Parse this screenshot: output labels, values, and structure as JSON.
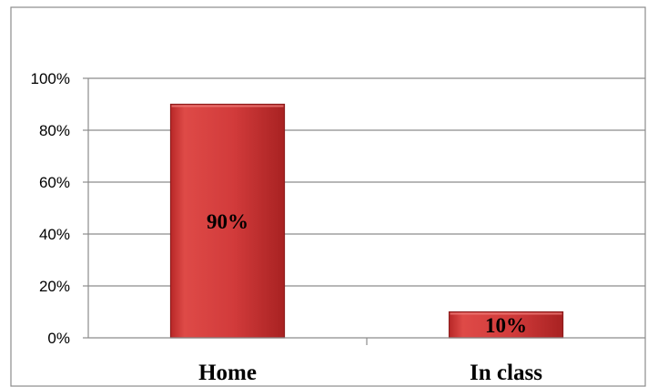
{
  "chart_data": {
    "type": "bar",
    "categories": [
      "Home",
      "In class"
    ],
    "values": [
      90,
      10
    ],
    "data_labels": [
      "90%",
      "10%"
    ],
    "title": "",
    "xlabel": "",
    "ylabel": "",
    "ylim": [
      0,
      100
    ],
    "yticks": [
      0,
      20,
      40,
      60,
      80,
      100
    ],
    "ytick_labels": [
      "0%",
      "20%",
      "40%",
      "60%",
      "80%",
      "100%"
    ],
    "grid": true,
    "legend": "none",
    "bar_color": "#d23b3b",
    "bar_edge_color": "#8e1d1d"
  }
}
